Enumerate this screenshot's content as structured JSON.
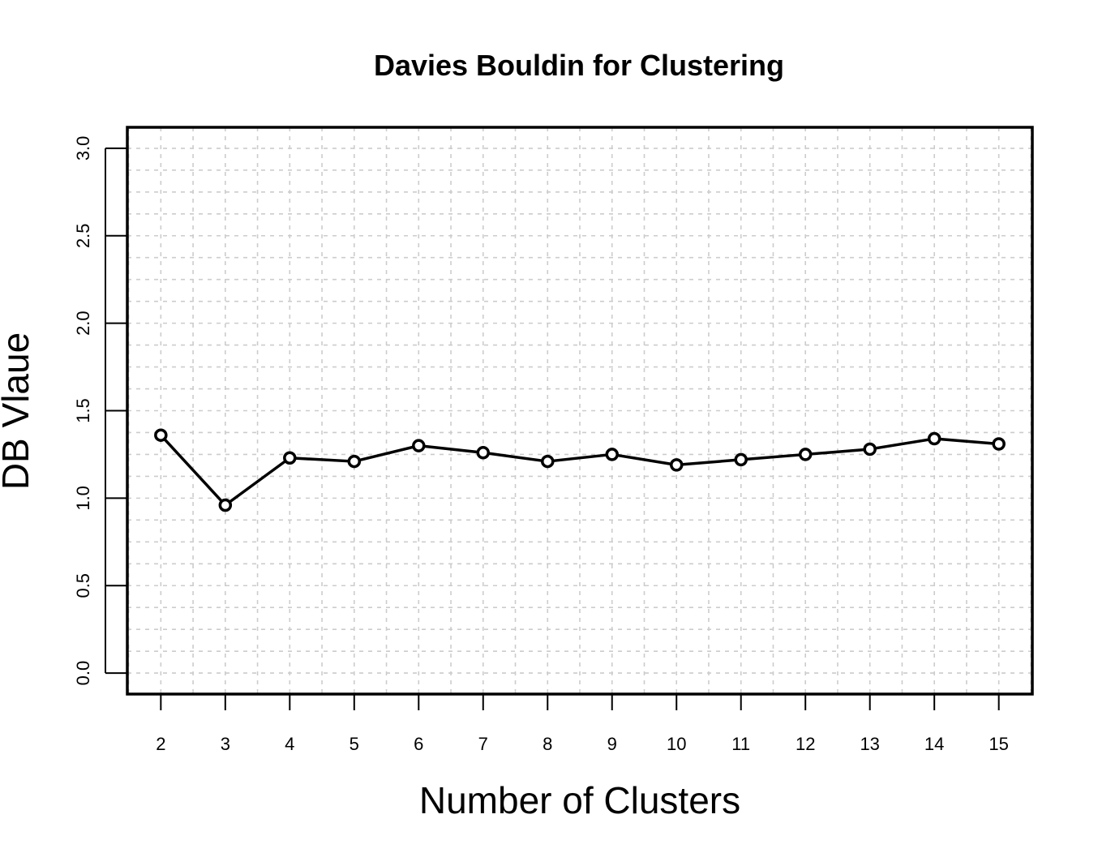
{
  "chart_data": {
    "type": "line",
    "title": "Davies Bouldin for Clustering",
    "xlabel": "Number of Clusters",
    "ylabel": "DB Vlaue",
    "x": [
      2,
      3,
      4,
      5,
      6,
      7,
      8,
      9,
      10,
      11,
      12,
      13,
      14,
      15
    ],
    "x_tick_labels": [
      "2",
      "3",
      "4",
      "5",
      "6",
      "7",
      "8",
      "9",
      "10",
      "11",
      "12",
      "13",
      "14",
      "15"
    ],
    "series": [
      {
        "values": [
          1.36,
          0.96,
          1.23,
          1.21,
          1.3,
          1.26,
          1.21,
          1.25,
          1.19,
          1.22,
          1.25,
          1.28,
          1.34,
          1.31
        ]
      }
    ],
    "xlim": [
      1.48,
      15.52
    ],
    "ylim": [
      -0.12,
      3.12
    ],
    "y_ticks": [
      0.0,
      0.5,
      1.0,
      1.5,
      2.0,
      2.5,
      3.0
    ],
    "y_tick_labels": [
      "0.0",
      "0.5",
      "1.0",
      "1.5",
      "2.0",
      "2.5",
      "3.0"
    ],
    "grid": true,
    "grid_style": "dotted light gray",
    "legend": "none",
    "line_color": "#000000",
    "marker": "open circle"
  }
}
